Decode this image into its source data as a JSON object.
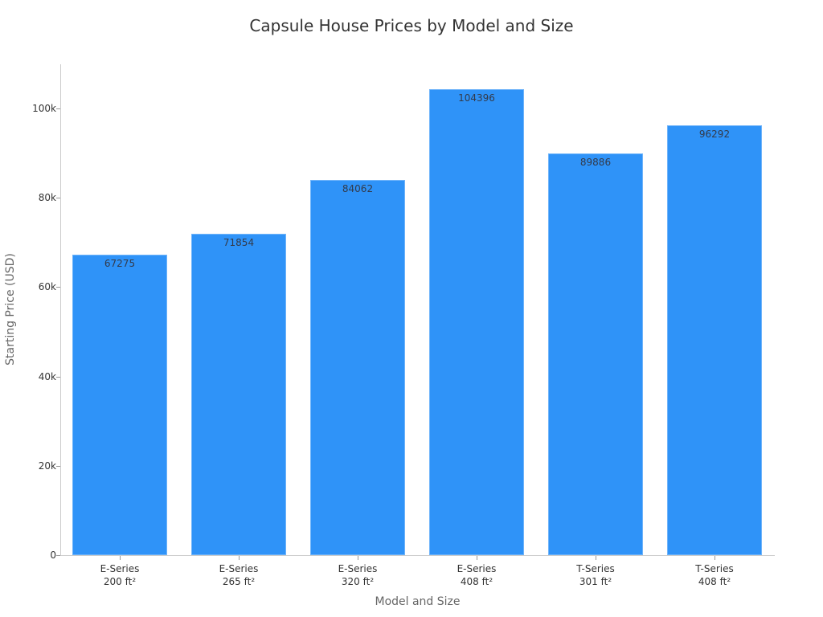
{
  "chart_data": {
    "type": "bar",
    "title": "Capsule House Prices by Model and Size",
    "xlabel": "Model and Size",
    "ylabel": "Starting Price (USD)",
    "categories": [
      "E-Series 200 ft²",
      "E-Series 265 ft²",
      "E-Series 320 ft²",
      "E-Series 408 ft²",
      "T-Series 301 ft²",
      "T-Series 408 ft²"
    ],
    "category_lines": [
      [
        "E-Series",
        "200 ft²"
      ],
      [
        "E-Series",
        "265 ft²"
      ],
      [
        "E-Series",
        "320 ft²"
      ],
      [
        "E-Series",
        "408 ft²"
      ],
      [
        "T-Series",
        "301 ft²"
      ],
      [
        "T-Series",
        "408 ft²"
      ]
    ],
    "values": [
      67275,
      71854,
      84062,
      104396,
      89886,
      96292
    ],
    "value_labels": [
      "67275",
      "71854",
      "84062",
      "104396",
      "89886",
      "96292"
    ],
    "ylim": [
      0,
      110000
    ],
    "yticks": [
      0,
      20000,
      40000,
      60000,
      80000,
      100000
    ],
    "ytick_labels": [
      "0",
      "20k",
      "40k",
      "60k",
      "80k",
      "100k"
    ],
    "grid": false,
    "legend": null,
    "bar_color": "#2f93f8"
  }
}
